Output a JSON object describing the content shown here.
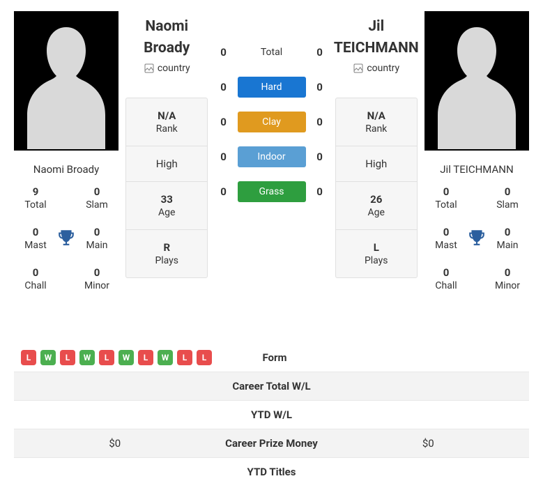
{
  "players": {
    "left": {
      "first_name": "Naomi",
      "last_name": "Broady",
      "full_name": "Naomi Broady",
      "country_alt": "country",
      "rank_value": "N/A",
      "rank_label": "Rank",
      "high_label": "High",
      "age_value": "33",
      "age_label": "Age",
      "plays_value": "R",
      "plays_label": "Plays",
      "stats": {
        "total": {
          "value": "9",
          "label": "Total"
        },
        "slam": {
          "value": "0",
          "label": "Slam"
        },
        "mast": {
          "value": "0",
          "label": "Mast"
        },
        "main": {
          "value": "0",
          "label": "Main"
        },
        "chall": {
          "value": "0",
          "label": "Chall"
        },
        "minor": {
          "value": "0",
          "label": "Minor"
        }
      },
      "form": [
        "L",
        "W",
        "L",
        "W",
        "L",
        "W",
        "L",
        "W",
        "L",
        "L"
      ],
      "prize_money": "$0"
    },
    "right": {
      "first_name": "Jil",
      "last_name": "TEICHMANN",
      "full_name": "Jil TEICHMANN",
      "country_alt": "country",
      "rank_value": "N/A",
      "rank_label": "Rank",
      "high_label": "High",
      "age_value": "26",
      "age_label": "Age",
      "plays_value": "L",
      "plays_label": "Plays",
      "stats": {
        "total": {
          "value": "0",
          "label": "Total"
        },
        "slam": {
          "value": "0",
          "label": "Slam"
        },
        "mast": {
          "value": "0",
          "label": "Mast"
        },
        "main": {
          "value": "0",
          "label": "Main"
        },
        "chall": {
          "value": "0",
          "label": "Chall"
        },
        "minor": {
          "value": "0",
          "label": "Minor"
        }
      },
      "form": [],
      "prize_money": "$0"
    }
  },
  "h2h": {
    "rows": [
      {
        "left": "0",
        "label": "Total",
        "right": "0",
        "color": ""
      },
      {
        "left": "0",
        "label": "Hard",
        "right": "0",
        "color": "#1976d2"
      },
      {
        "left": "0",
        "label": "Clay",
        "right": "0",
        "color": "#e09a1f"
      },
      {
        "left": "0",
        "label": "Indoor",
        "right": "0",
        "color": "#5a9fd4"
      },
      {
        "left": "0",
        "label": "Grass",
        "right": "0",
        "color": "#2e9e3f"
      }
    ]
  },
  "bottom": {
    "rows": [
      {
        "label": "Form"
      },
      {
        "label": "Career Total W/L"
      },
      {
        "label": "YTD W/L"
      },
      {
        "label": "Career Prize Money"
      },
      {
        "label": "YTD Titles"
      }
    ]
  },
  "colors": {
    "win_chip": "#4caf50",
    "loss_chip": "#e84d4d",
    "trophy": "#2c5f9e"
  }
}
